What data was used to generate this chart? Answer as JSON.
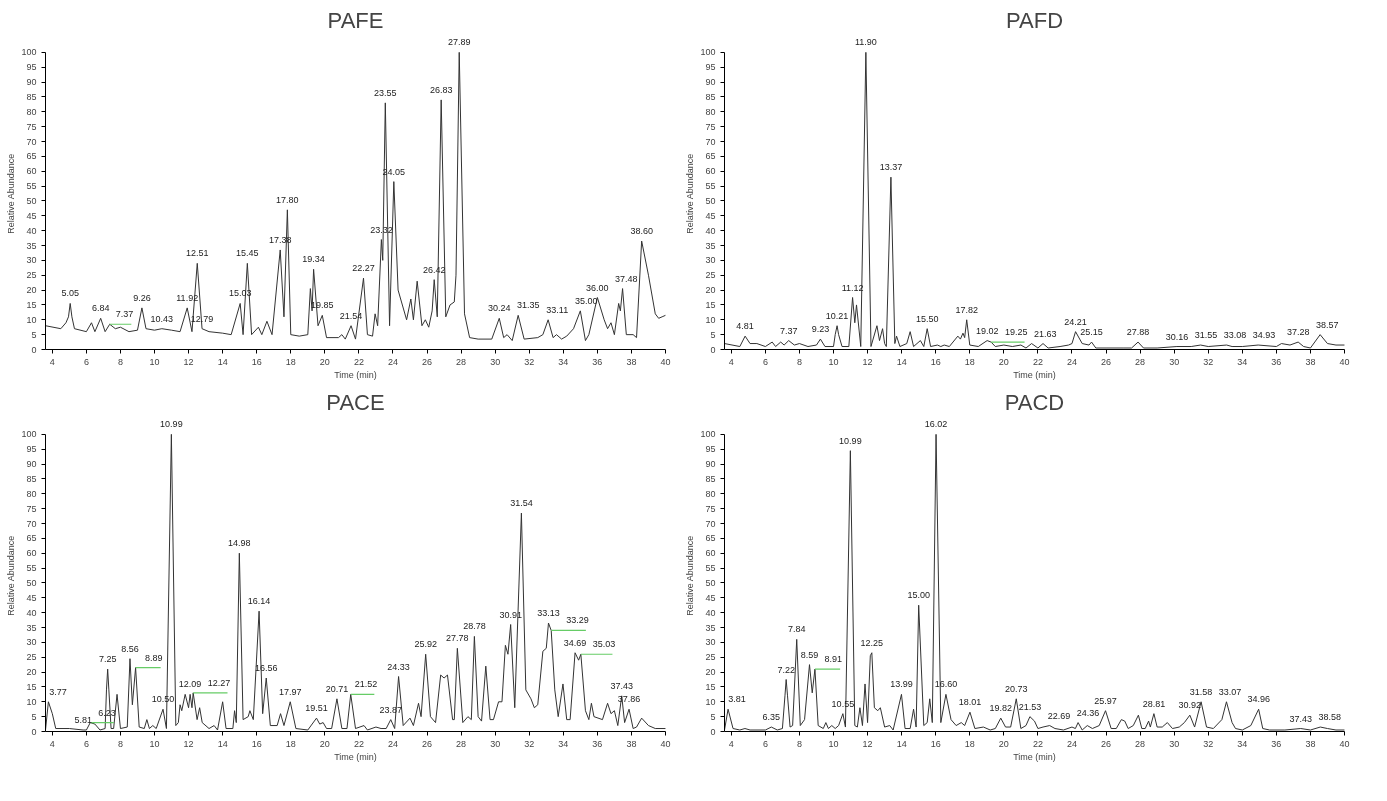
{
  "chart_data": [
    {
      "type": "line",
      "title": "PAFE",
      "xlabel": "Time (min)",
      "ylabel": "Relative Abundance",
      "xlim": [
        3.6,
        40
      ],
      "ylim": [
        0,
        100
      ],
      "xticks": [
        4,
        6,
        8,
        10,
        12,
        14,
        16,
        18,
        20,
        22,
        24,
        26,
        28,
        30,
        32,
        34,
        36,
        38,
        40
      ],
      "yticks": [
        0,
        5,
        10,
        15,
        20,
        25,
        30,
        35,
        40,
        45,
        50,
        55,
        60,
        65,
        70,
        75,
        80,
        85,
        90,
        95,
        100
      ],
      "grid": false,
      "series": [
        {
          "color": "#333333",
          "x": [
            3.6,
            4.5,
            4.8,
            4.95,
            5.05,
            5.15,
            5.3,
            6.0,
            6.3,
            6.5,
            6.84,
            7.1,
            7.37,
            7.7,
            8.0,
            8.5,
            9.0,
            9.26,
            9.5,
            10.0,
            10.43,
            11.0,
            11.5,
            11.92,
            12.2,
            12.51,
            12.79,
            13.2,
            14.0,
            14.5,
            15.03,
            15.2,
            15.45,
            15.7,
            16.1,
            16.3,
            16.6,
            16.9,
            17.38,
            17.6,
            17.8,
            18.0,
            18.5,
            19.0,
            19.15,
            19.25,
            19.34,
            19.6,
            19.85,
            20.1,
            20.8,
            21.0,
            21.2,
            21.54,
            21.8,
            22.27,
            22.5,
            22.8,
            22.95,
            23.1,
            23.32,
            23.4,
            23.55,
            23.8,
            24.05,
            24.3,
            24.8,
            25.05,
            25.2,
            25.42,
            25.7,
            25.9,
            26.1,
            26.3,
            26.42,
            26.6,
            26.83,
            27.1,
            27.35,
            27.6,
            27.7,
            27.89,
            28.2,
            28.5,
            29.0,
            29.8,
            30.24,
            30.5,
            30.7,
            31.0,
            31.35,
            31.7,
            32.5,
            32.8,
            33.11,
            33.4,
            33.6,
            33.9,
            34.2,
            34.6,
            35.0,
            35.3,
            35.5,
            36.0,
            36.4,
            36.6,
            36.8,
            37.0,
            37.25,
            37.35,
            37.48,
            37.7,
            38.1,
            38.3,
            38.6,
            39.0,
            39.4,
            39.6,
            39.8,
            40
          ],
          "values": [
            8,
            7,
            9,
            11,
            15.5,
            11,
            7,
            6,
            9,
            6,
            10.5,
            6,
            8.5,
            7,
            7.5,
            6,
            6.5,
            14,
            7,
            6.5,
            7,
            6.5,
            6,
            14,
            6,
            29,
            7,
            6,
            5.5,
            5,
            15.5,
            5,
            29,
            5,
            7.5,
            5,
            9.5,
            5,
            33.5,
            11,
            47,
            5,
            4.5,
            5,
            20.5,
            13,
            27,
            8,
            11.5,
            4,
            4,
            5,
            3.5,
            8,
            3.5,
            24,
            5,
            4.5,
            12,
            8,
            37,
            30,
            83,
            8,
            56.5,
            20,
            10,
            17,
            10,
            23,
            8,
            10,
            7.5,
            13,
            23.5,
            11,
            84,
            11,
            15,
            16,
            25,
            100,
            12,
            4,
            3.5,
            3.5,
            10.5,
            4,
            5,
            3,
            11.5,
            3.5,
            4,
            5,
            10,
            4,
            5,
            3.5,
            4.5,
            7,
            13,
            3,
            5,
            17.5,
            10,
            7,
            9,
            5,
            15.5,
            13,
            20.5,
            5,
            5,
            4,
            36.5,
            25,
            12,
            10.5,
            11,
            11.5
          ]
        }
      ],
      "annotations": [
        {
          "text": "5.05",
          "x": 5.05,
          "y": 15.5
        },
        {
          "text": "6.84",
          "x": 6.84,
          "y": 10.5
        },
        {
          "text": "7.37",
          "x": 7.37,
          "y": 8.5
        },
        {
          "text": "9.26",
          "x": 9.26,
          "y": 14
        },
        {
          "text": "10.43",
          "x": 10.43,
          "y": 7
        },
        {
          "text": "11.92",
          "x": 11.92,
          "y": 14
        },
        {
          "text": "12.51",
          "x": 12.51,
          "y": 29
        },
        {
          "text": "12.79",
          "x": 12.79,
          "y": 7
        },
        {
          "text": "15.03",
          "x": 15.03,
          "y": 15.5
        },
        {
          "text": "15.45",
          "x": 15.45,
          "y": 29
        },
        {
          "text": "17.38",
          "x": 17.38,
          "y": 33.5
        },
        {
          "text": "17.80",
          "x": 17.8,
          "y": 47
        },
        {
          "text": "19.34",
          "x": 19.34,
          "y": 27
        },
        {
          "text": "19.85",
          "x": 19.85,
          "y": 11.5
        },
        {
          "text": "21.54",
          "x": 21.54,
          "y": 8
        },
        {
          "text": "22.27",
          "x": 22.27,
          "y": 24
        },
        {
          "text": "23.32",
          "x": 23.32,
          "y": 37
        },
        {
          "text": "23.55",
          "x": 23.55,
          "y": 83
        },
        {
          "text": "24.05",
          "x": 24.05,
          "y": 56.5
        },
        {
          "text": "26.42",
          "x": 26.42,
          "y": 23.5
        },
        {
          "text": "26.83",
          "x": 26.83,
          "y": 84
        },
        {
          "text": "27.89",
          "x": 27.89,
          "y": 100
        },
        {
          "text": "30.24",
          "x": 30.24,
          "y": 10.5
        },
        {
          "text": "31.35",
          "x": 31.35,
          "y": 11.5
        },
        {
          "text": "33.11",
          "x": 33.11,
          "y": 10
        },
        {
          "text": "35.00",
          "x": 35.0,
          "y": 13
        },
        {
          "text": "36.00",
          "x": 36.0,
          "y": 17.5
        },
        {
          "text": "37.48",
          "x": 37.48,
          "y": 20.5
        },
        {
          "text": "38.60",
          "x": 38.6,
          "y": 36.5
        }
      ]
    },
    {
      "type": "line",
      "title": "PAFD",
      "xlabel": "Time (min)",
      "ylabel": "Relative Abundance",
      "xlim": [
        3.6,
        40
      ],
      "ylim": [
        0,
        100
      ],
      "xticks": [
        4,
        6,
        8,
        10,
        12,
        14,
        16,
        18,
        20,
        22,
        24,
        26,
        28,
        30,
        32,
        34,
        36,
        38,
        40
      ],
      "yticks": [
        0,
        5,
        10,
        15,
        20,
        25,
        30,
        35,
        40,
        45,
        50,
        55,
        60,
        65,
        70,
        75,
        80,
        85,
        90,
        95,
        100
      ],
      "grid": false,
      "series": [
        {
          "color": "#333333",
          "x": [
            3.6,
            4.5,
            4.81,
            5.1,
            5.5,
            6.0,
            6.4,
            6.6,
            6.9,
            7.1,
            7.37,
            7.7,
            8.0,
            8.5,
            9.0,
            9.23,
            9.5,
            10.0,
            10.1,
            10.21,
            10.3,
            10.5,
            10.9,
            11.12,
            11.25,
            11.35,
            11.6,
            11.9,
            12.2,
            12.55,
            12.7,
            12.88,
            13.0,
            13.1,
            13.37,
            13.6,
            13.7,
            13.9,
            14.3,
            14.5,
            14.7,
            15.1,
            15.3,
            15.5,
            15.7,
            16.1,
            16.3,
            16.5,
            16.8,
            17.3,
            17.45,
            17.6,
            17.7,
            17.82,
            18.0,
            18.5,
            19.02,
            19.25,
            19.5,
            20.0,
            20.5,
            21.0,
            21.3,
            21.63,
            22.0,
            22.3,
            22.6,
            23.3,
            23.8,
            24.0,
            24.21,
            24.6,
            25.0,
            25.15,
            25.4,
            26.0,
            27.0,
            27.5,
            27.88,
            28.2,
            29.0,
            30.16,
            31.0,
            31.55,
            32.0,
            33.08,
            33.4,
            34.0,
            34.93,
            36.0,
            36.3,
            36.8,
            37.28,
            37.6,
            38.0,
            38.57,
            39.0,
            39.5,
            40
          ],
          "values": [
            2,
            1,
            4.5,
            2,
            2,
            1,
            2.5,
            1,
            2.5,
            1.5,
            3,
            1.5,
            2,
            1,
            1.5,
            3.5,
            1,
            1,
            5,
            8,
            5,
            1,
            1,
            17.5,
            9,
            15,
            1,
            100,
            1,
            8,
            3,
            7,
            2,
            1,
            58,
            2,
            4.5,
            1,
            2,
            6,
            1,
            3,
            1,
            7,
            1,
            1.5,
            1,
            1.5,
            1,
            4.5,
            3.5,
            5.5,
            4,
            10,
            1.5,
            1,
            3,
            2.5,
            1,
            1.5,
            1,
            1.5,
            0.5,
            2,
            0.5,
            2,
            0.5,
            1,
            1.5,
            2,
            6,
            2,
            1.5,
            2.5,
            0.5,
            0.5,
            0.5,
            0.5,
            2.5,
            0.5,
            0.5,
            1,
            1,
            1.5,
            1,
            1.5,
            1,
            1,
            1.5,
            1,
            2,
            1.5,
            2.5,
            1,
            0.5,
            5,
            2,
            1.5,
            1.5
          ]
        }
      ],
      "annotations": [
        {
          "text": "4.81",
          "x": 4.81,
          "y": 4.5
        },
        {
          "text": "7.37",
          "x": 7.37,
          "y": 3
        },
        {
          "text": "9.23",
          "x": 9.23,
          "y": 3.5
        },
        {
          "text": "10.21",
          "x": 10.21,
          "y": 8
        },
        {
          "text": "11.12",
          "x": 11.12,
          "y": 17.5
        },
        {
          "text": "11.90",
          "x": 11.9,
          "y": 100
        },
        {
          "text": "13.37",
          "x": 13.37,
          "y": 58
        },
        {
          "text": "15.50",
          "x": 15.5,
          "y": 7
        },
        {
          "text": "17.82",
          "x": 17.82,
          "y": 10
        },
        {
          "text": "19.02",
          "x": 19.02,
          "y": 3
        },
        {
          "text": "19.25",
          "x": 19.25,
          "y": 2.5
        },
        {
          "text": "21.63",
          "x": 21.63,
          "y": 2
        },
        {
          "text": "24.21",
          "x": 24.21,
          "y": 6
        },
        {
          "text": "25.15",
          "x": 25.15,
          "y": 2.5
        },
        {
          "text": "27.88",
          "x": 27.88,
          "y": 2.5
        },
        {
          "text": "30.16",
          "x": 30.16,
          "y": 1
        },
        {
          "text": "31.55",
          "x": 31.55,
          "y": 1.5
        },
        {
          "text": "33.08",
          "x": 33.08,
          "y": 1.5
        },
        {
          "text": "34.93",
          "x": 34.93,
          "y": 1.5
        },
        {
          "text": "37.28",
          "x": 37.28,
          "y": 2.5
        },
        {
          "text": "38.57",
          "x": 38.57,
          "y": 5
        }
      ]
    },
    {
      "type": "line",
      "title": "PACE",
      "xlabel": "Time (min)",
      "ylabel": "Relative Abundance",
      "xlim": [
        3.6,
        40
      ],
      "ylim": [
        0,
        100
      ],
      "xticks": [
        4,
        6,
        8,
        10,
        12,
        14,
        16,
        18,
        20,
        22,
        24,
        26,
        28,
        30,
        32,
        34,
        36,
        38,
        40
      ],
      "yticks": [
        0,
        5,
        10,
        15,
        20,
        25,
        30,
        35,
        40,
        45,
        50,
        55,
        60,
        65,
        70,
        75,
        80,
        85,
        90,
        95,
        100
      ],
      "grid": false,
      "series": [
        {
          "color": "#333333",
          "x": [
            3.6,
            3.77,
            4.0,
            4.2,
            5.0,
            5.81,
            6.0,
            6.23,
            6.5,
            6.8,
            7.1,
            7.18,
            7.25,
            7.32,
            7.45,
            7.6,
            7.8,
            8.0,
            8.4,
            8.56,
            8.7,
            8.89,
            9.1,
            9.4,
            9.55,
            9.7,
            9.9,
            10.1,
            10.5,
            10.7,
            10.99,
            11.25,
            11.4,
            11.5,
            11.6,
            11.8,
            12.0,
            12.09,
            12.2,
            12.27,
            12.5,
            12.65,
            12.8,
            13.2,
            13.5,
            13.7,
            14.0,
            14.2,
            14.6,
            14.7,
            14.8,
            14.98,
            15.2,
            15.5,
            15.6,
            15.8,
            16.14,
            16.35,
            16.56,
            16.8,
            17.2,
            17.4,
            17.6,
            17.97,
            18.3,
            19.0,
            19.51,
            19.7,
            19.9,
            20.1,
            20.4,
            20.71,
            21.0,
            21.3,
            21.52,
            21.8,
            22.3,
            22.5,
            23.0,
            23.3,
            23.6,
            23.87,
            24.1,
            24.33,
            24.6,
            25.0,
            25.2,
            25.5,
            25.65,
            25.92,
            26.2,
            26.5,
            26.8,
            27.0,
            27.2,
            27.5,
            27.6,
            27.78,
            28.1,
            28.4,
            28.6,
            28.78,
            29.0,
            29.2,
            29.45,
            29.7,
            29.9,
            30.2,
            30.4,
            30.6,
            30.75,
            30.91,
            31.15,
            31.54,
            31.8,
            32.1,
            32.3,
            32.5,
            32.8,
            33.0,
            33.13,
            33.29,
            33.5,
            33.7,
            33.98,
            34.2,
            34.4,
            34.69,
            34.9,
            35.03,
            35.3,
            35.5,
            35.65,
            35.8,
            36.3,
            36.6,
            36.8,
            37.0,
            37.2,
            37.43,
            37.6,
            37.86,
            38.1,
            38.3,
            38.6,
            39.0,
            39.4,
            40
          ],
          "values": [
            0.5,
            10,
            6,
            1,
            1,
            0.5,
            0.5,
            3,
            2.5,
            0.5,
            1,
            14,
            21,
            14,
            1,
            1,
            12.5,
            1,
            1.5,
            24.5,
            9,
            21.5,
            1.5,
            1,
            4,
            1,
            2,
            1,
            7.5,
            1,
            100,
            2,
            3,
            9,
            7,
            12.5,
            8,
            12.5,
            8,
            13,
            4,
            8,
            3,
            1,
            2,
            0.5,
            10,
            1,
            1,
            7,
            3,
            60,
            4,
            5,
            7,
            4,
            40.5,
            6,
            18,
            2,
            2,
            6,
            2,
            10,
            1,
            0.5,
            4.5,
            2.5,
            3,
            1,
            1,
            11,
            1,
            1,
            12.5,
            1,
            2,
            0.5,
            1.5,
            1,
            1,
            4,
            1,
            18.5,
            2,
            4.5,
            2,
            9.5,
            5,
            26,
            5,
            3,
            19,
            18,
            19,
            4,
            4,
            28,
            3,
            5,
            4,
            32,
            5,
            3.5,
            22,
            4,
            4,
            10,
            10,
            29,
            26,
            36,
            8,
            73.5,
            14,
            11,
            8,
            9,
            27,
            28,
            36.5,
            34,
            14,
            5,
            16,
            4,
            4,
            26.5,
            24,
            26,
            7,
            4,
            9.5,
            5,
            4,
            9.5,
            6,
            7,
            2,
            12,
            3,
            7.5,
            1,
            1.5,
            4.5,
            2,
            1,
            1
          ]
        }
      ],
      "annotations": [
        {
          "text": "3.77",
          "x": 3.77,
          "y": 10
        },
        {
          "text": "5.81",
          "x": 5.81,
          "y": 0.5
        },
        {
          "text": "6.23",
          "x": 6.23,
          "y": 3
        },
        {
          "text": "7.25",
          "x": 7.25,
          "y": 21
        },
        {
          "text": "8.56",
          "x": 8.56,
          "y": 24.5
        },
        {
          "text": "8.89",
          "x": 8.89,
          "y": 21.5
        },
        {
          "text": "10.50",
          "x": 10.5,
          "y": 7.5
        },
        {
          "text": "10.99",
          "x": 10.99,
          "y": 100
        },
        {
          "text": "12.09",
          "x": 12.09,
          "y": 12.5
        },
        {
          "text": "12.27",
          "x": 12.27,
          "y": 13
        },
        {
          "text": "14.98",
          "x": 14.98,
          "y": 60
        },
        {
          "text": "16.14",
          "x": 16.14,
          "y": 40.5
        },
        {
          "text": "16.56",
          "x": 16.56,
          "y": 18
        },
        {
          "text": "17.97",
          "x": 17.97,
          "y": 10
        },
        {
          "text": "19.51",
          "x": 19.51,
          "y": 4.5
        },
        {
          "text": "20.71",
          "x": 20.71,
          "y": 11
        },
        {
          "text": "21.52",
          "x": 21.52,
          "y": 12.5
        },
        {
          "text": "23.87",
          "x": 23.87,
          "y": 4
        },
        {
          "text": "24.33",
          "x": 24.33,
          "y": 18.5
        },
        {
          "text": "25.92",
          "x": 25.92,
          "y": 26
        },
        {
          "text": "27.78",
          "x": 27.78,
          "y": 28
        },
        {
          "text": "28.78",
          "x": 28.78,
          "y": 32
        },
        {
          "text": "30.91",
          "x": 30.91,
          "y": 36
        },
        {
          "text": "31.54",
          "x": 31.54,
          "y": 73.5
        },
        {
          "text": "33.13",
          "x": 33.13,
          "y": 36.5
        },
        {
          "text": "33.29",
          "x": 33.29,
          "y": 34
        },
        {
          "text": "34.69",
          "x": 34.69,
          "y": 26.5
        },
        {
          "text": "35.03",
          "x": 35.03,
          "y": 26
        },
        {
          "text": "37.43",
          "x": 37.43,
          "y": 12
        },
        {
          "text": "37.86",
          "x": 37.86,
          "y": 7.5
        }
      ]
    },
    {
      "type": "line",
      "title": "PACD",
      "xlabel": "Time (min)",
      "ylabel": "Relative Abundance",
      "xlim": [
        3.6,
        40
      ],
      "ylim": [
        0,
        100
      ],
      "xticks": [
        4,
        6,
        8,
        10,
        12,
        14,
        16,
        18,
        20,
        22,
        24,
        26,
        28,
        30,
        32,
        34,
        36,
        38,
        40
      ],
      "yticks": [
        0,
        5,
        10,
        15,
        20,
        25,
        30,
        35,
        40,
        45,
        50,
        55,
        60,
        65,
        70,
        75,
        80,
        85,
        90,
        95,
        100
      ],
      "grid": false,
      "series": [
        {
          "color": "#333333",
          "x": [
            3.6,
            3.81,
            4.1,
            4.5,
            4.8,
            5.1,
            6.0,
            6.35,
            6.7,
            7.0,
            7.15,
            7.22,
            7.3,
            7.45,
            7.6,
            7.84,
            8.05,
            8.3,
            8.59,
            8.75,
            8.91,
            9.1,
            9.4,
            9.55,
            9.7,
            9.9,
            10.1,
            10.3,
            10.55,
            10.7,
            10.99,
            11.25,
            11.4,
            11.55,
            11.7,
            11.85,
            12.0,
            12.16,
            12.25,
            12.4,
            12.6,
            12.75,
            13.0,
            13.3,
            13.5,
            13.99,
            14.2,
            14.5,
            14.7,
            14.85,
            15.0,
            15.3,
            15.5,
            15.65,
            15.8,
            16.02,
            16.3,
            16.6,
            16.9,
            17.2,
            17.5,
            17.7,
            18.01,
            18.3,
            18.8,
            19.2,
            19.5,
            19.82,
            20.1,
            20.4,
            20.73,
            21.0,
            21.3,
            21.53,
            21.8,
            22.0,
            22.3,
            22.69,
            23.0,
            23.5,
            24.0,
            24.2,
            24.36,
            24.6,
            24.9,
            25.2,
            25.6,
            25.97,
            26.3,
            26.6,
            26.9,
            27.1,
            27.3,
            27.6,
            27.9,
            28.1,
            28.3,
            28.5,
            28.6,
            28.81,
            29.0,
            29.3,
            29.6,
            29.9,
            30.3,
            30.6,
            30.92,
            31.2,
            31.58,
            31.9,
            32.3,
            32.8,
            33.07,
            33.4,
            33.6,
            34.0,
            34.5,
            34.96,
            35.2,
            35.6,
            36.5,
            37.43,
            38.0,
            38.58,
            39.0,
            39.5,
            40
          ],
          "values": [
            0.5,
            7.5,
            1,
            0.5,
            1,
            0.5,
            0.5,
            1.5,
            0.5,
            1,
            12,
            17.5,
            12,
            1.5,
            2,
            31,
            2,
            4,
            22.5,
            13,
            21,
            2,
            1,
            3,
            1,
            2,
            1,
            2,
            6,
            1.5,
            94.5,
            2,
            1.5,
            8,
            2,
            16,
            3,
            25.5,
            26.5,
            8,
            7,
            8,
            1.5,
            2,
            0.5,
            12.5,
            1,
            1,
            7.5,
            1.5,
            42.5,
            2,
            3,
            11,
            3,
            100,
            3,
            12.5,
            4,
            2,
            3,
            2,
            6.5,
            1,
            1.5,
            0.5,
            1,
            4.5,
            1.5,
            1.5,
            11,
            1,
            2,
            5,
            3.5,
            1,
            1.5,
            2,
            1,
            0.5,
            1.5,
            1,
            3,
            0.5,
            2,
            1,
            2,
            7,
            1,
            1,
            4,
            3.5,
            1,
            2,
            5.5,
            1,
            1,
            3.5,
            1.5,
            6,
            1.5,
            1.5,
            3,
            1,
            1.5,
            3,
            5.5,
            1.5,
            10,
            1.5,
            1,
            4,
            10,
            3,
            1,
            0.5,
            2,
            7.5,
            1,
            0.5,
            0.5,
            1,
            0.5,
            1.5,
            1,
            0.5,
            0.5
          ]
        }
      ],
      "annotations": [
        {
          "text": "3.81",
          "x": 3.81,
          "y": 7.5
        },
        {
          "text": "6.35",
          "x": 6.35,
          "y": 1.5
        },
        {
          "text": "7.22",
          "x": 7.22,
          "y": 17.5
        },
        {
          "text": "7.84",
          "x": 7.84,
          "y": 31
        },
        {
          "text": "8.59",
          "x": 8.59,
          "y": 22.5
        },
        {
          "text": "8.91",
          "x": 8.91,
          "y": 21
        },
        {
          "text": "10.55",
          "x": 10.55,
          "y": 6
        },
        {
          "text": "10.99",
          "x": 10.99,
          "y": 94.5
        },
        {
          "text": "12.25",
          "x": 12.25,
          "y": 26.5
        },
        {
          "text": "13.99",
          "x": 13.99,
          "y": 12.5
        },
        {
          "text": "15.00",
          "x": 15.0,
          "y": 42.5
        },
        {
          "text": "16.02",
          "x": 16.02,
          "y": 100
        },
        {
          "text": "16.60",
          "x": 16.6,
          "y": 12.5
        },
        {
          "text": "18.01",
          "x": 18.01,
          "y": 6.5
        },
        {
          "text": "19.82",
          "x": 19.82,
          "y": 4.5
        },
        {
          "text": "20.73",
          "x": 20.73,
          "y": 11
        },
        {
          "text": "21.53",
          "x": 21.53,
          "y": 5
        },
        {
          "text": "22.69",
          "x": 22.69,
          "y": 2
        },
        {
          "text": "24.36",
          "x": 24.36,
          "y": 3
        },
        {
          "text": "25.97",
          "x": 25.97,
          "y": 7
        },
        {
          "text": "28.81",
          "x": 28.81,
          "y": 6
        },
        {
          "text": "30.92",
          "x": 30.92,
          "y": 5.5
        },
        {
          "text": "31.58",
          "x": 31.58,
          "y": 10
        },
        {
          "text": "33.07",
          "x": 33.07,
          "y": 10
        },
        {
          "text": "34.96",
          "x": 34.96,
          "y": 7.5
        },
        {
          "text": "37.43",
          "x": 37.43,
          "y": 1
        },
        {
          "text": "38.58",
          "x": 38.58,
          "y": 1.5
        }
      ]
    }
  ]
}
